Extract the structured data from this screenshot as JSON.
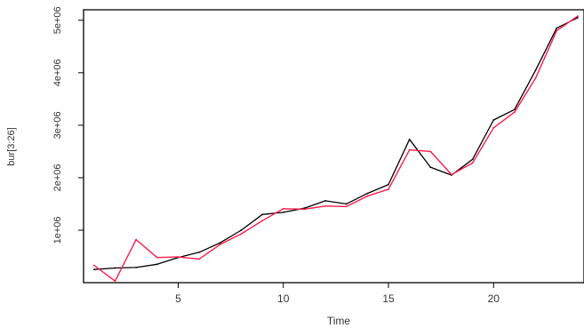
{
  "chart_data": {
    "type": "line",
    "title": "",
    "xlabel": "Time",
    "ylabel": "bur[3:26]",
    "xlim": [
      0.5,
      24.3
    ],
    "ylim": [
      0,
      5200000
    ],
    "x_ticks": [
      5,
      10,
      15,
      20
    ],
    "x_tick_labels": [
      "5",
      "10",
      "15",
      "20"
    ],
    "y_ticks": [
      1000000,
      2000000,
      3000000,
      4000000,
      5000000
    ],
    "y_tick_labels": [
      "1e+06",
      "2e+06",
      "3e+06",
      "4e+06",
      "5e+06"
    ],
    "grid": false,
    "legend": "none",
    "x": [
      1,
      2,
      3,
      4,
      5,
      6,
      7,
      8,
      9,
      10,
      11,
      12,
      13,
      14,
      15,
      16,
      17,
      18,
      19,
      20,
      21,
      22,
      23,
      24
    ],
    "series": [
      {
        "color": "#000000",
        "values": [
          250000,
          280000,
          290000,
          350000,
          480000,
          580000,
          760000,
          1000000,
          1300000,
          1340000,
          1420000,
          1560000,
          1500000,
          1700000,
          1870000,
          2730000,
          2200000,
          2050000,
          2350000,
          3100000,
          3300000,
          4050000,
          4850000,
          5050000
        ]
      },
      {
        "color": "#ff1a4a",
        "values": [
          330000,
          30000,
          820000,
          480000,
          490000,
          450000,
          730000,
          930000,
          1180000,
          1410000,
          1400000,
          1460000,
          1450000,
          1650000,
          1780000,
          2530000,
          2500000,
          2060000,
          2280000,
          2950000,
          3250000,
          3900000,
          4800000,
          5080000
        ]
      }
    ]
  }
}
